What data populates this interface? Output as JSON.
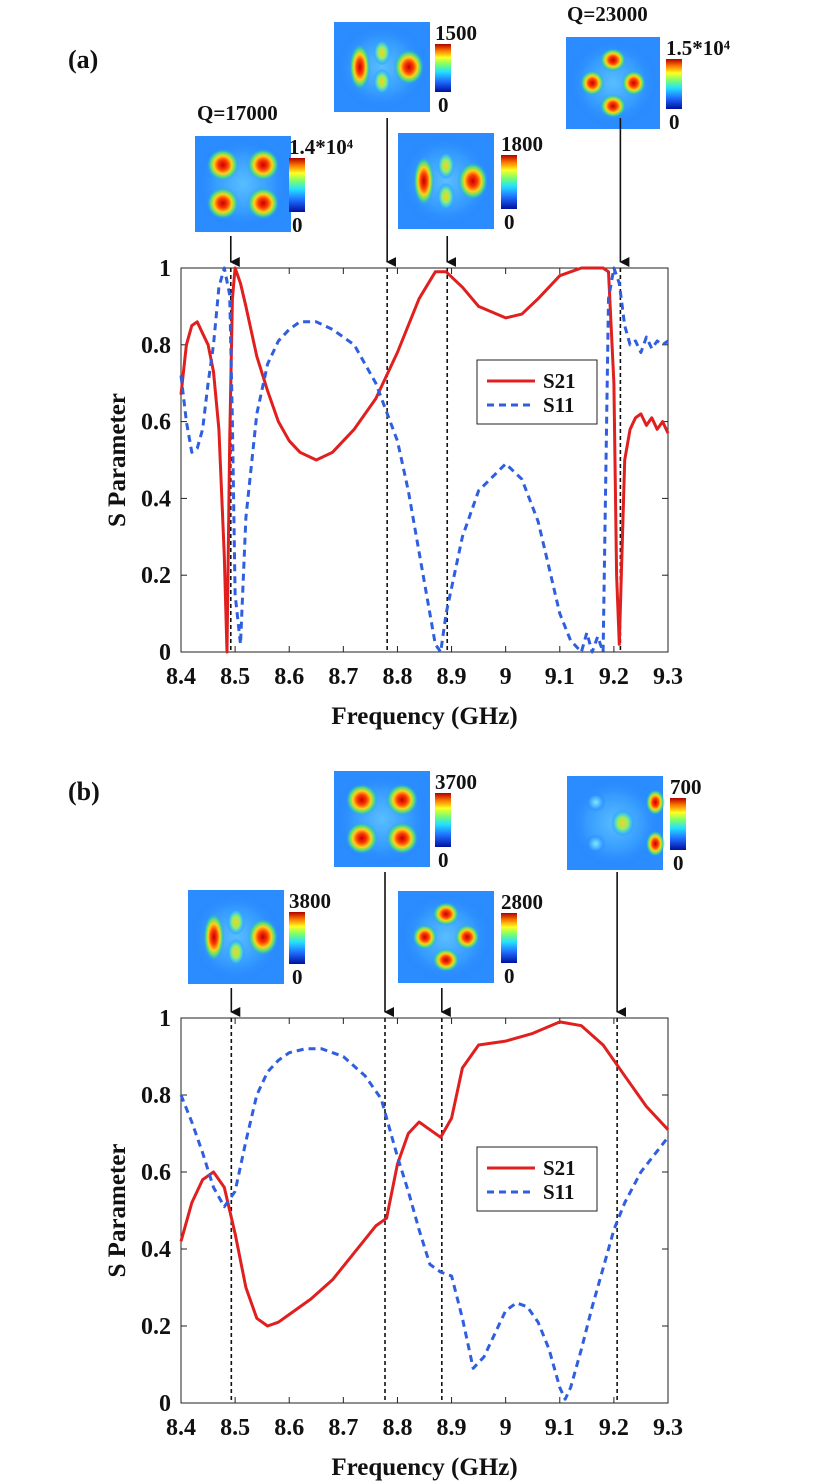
{
  "chart_data": [
    {
      "type": "line",
      "panel_label": "(a)",
      "xlabel": "Frequency (GHz)",
      "ylabel": "S Parameter",
      "xlim": [
        8.4,
        9.3
      ],
      "ylim": [
        0,
        1
      ],
      "xticks": [
        "8.4",
        "8.5",
        "8.6",
        "8.7",
        "8.8",
        "8.9",
        "9",
        "9.1",
        "9.2",
        "9.3"
      ],
      "yticks": [
        "0",
        "0.2",
        "0.4",
        "0.6",
        "0.8",
        "1"
      ],
      "legend": {
        "position": "center-right",
        "entries": [
          "S21",
          "S11"
        ]
      },
      "series": [
        {
          "name": "S21",
          "color": "#e01f1f",
          "style": "solid",
          "x": [
            8.4,
            8.41,
            8.42,
            8.43,
            8.44,
            8.45,
            8.46,
            8.47,
            8.48,
            8.485,
            8.49,
            8.495,
            8.5,
            8.51,
            8.52,
            8.54,
            8.56,
            8.58,
            8.6,
            8.62,
            8.65,
            8.68,
            8.72,
            8.76,
            8.8,
            8.84,
            8.87,
            8.89,
            8.92,
            8.95,
            9.0,
            9.03,
            9.06,
            9.08,
            9.1,
            9.12,
            9.14,
            9.16,
            9.18,
            9.19,
            9.2,
            9.205,
            9.21,
            9.22,
            9.23,
            9.24,
            9.25,
            9.26,
            9.27,
            9.28,
            9.29,
            9.3
          ],
          "y": [
            0.67,
            0.8,
            0.85,
            0.86,
            0.83,
            0.8,
            0.73,
            0.58,
            0.25,
            0.0,
            0.55,
            0.92,
            1.0,
            0.96,
            0.9,
            0.77,
            0.68,
            0.6,
            0.55,
            0.52,
            0.5,
            0.52,
            0.58,
            0.66,
            0.78,
            0.92,
            0.99,
            0.99,
            0.95,
            0.9,
            0.87,
            0.88,
            0.92,
            0.95,
            0.98,
            0.99,
            1.0,
            1.0,
            1.0,
            0.99,
            0.7,
            0.2,
            0.02,
            0.5,
            0.58,
            0.61,
            0.62,
            0.59,
            0.61,
            0.58,
            0.6,
            0.57
          ]
        },
        {
          "name": "S11",
          "color": "#2f5fe0",
          "style": "dashed",
          "x": [
            8.4,
            8.41,
            8.42,
            8.43,
            8.44,
            8.45,
            8.46,
            8.47,
            8.48,
            8.49,
            8.495,
            8.5,
            8.51,
            8.52,
            8.54,
            8.56,
            8.58,
            8.6,
            8.62,
            8.65,
            8.68,
            8.72,
            8.76,
            8.8,
            8.82,
            8.84,
            8.86,
            8.87,
            8.88,
            8.89,
            8.92,
            8.95,
            9.0,
            9.03,
            9.06,
            9.08,
            9.1,
            9.12,
            9.14,
            9.15,
            9.16,
            9.17,
            9.18,
            9.19,
            9.2,
            9.21,
            9.22,
            9.23,
            9.24,
            9.25,
            9.26,
            9.27,
            9.28,
            9.29,
            9.3
          ],
          "y": [
            0.72,
            0.6,
            0.52,
            0.53,
            0.58,
            0.7,
            0.8,
            0.95,
            1.0,
            0.93,
            0.6,
            0.15,
            0.02,
            0.35,
            0.62,
            0.75,
            0.81,
            0.84,
            0.86,
            0.86,
            0.84,
            0.8,
            0.7,
            0.55,
            0.42,
            0.26,
            0.1,
            0.02,
            0.0,
            0.1,
            0.3,
            0.42,
            0.49,
            0.45,
            0.34,
            0.22,
            0.1,
            0.03,
            0.0,
            0.05,
            0.0,
            0.04,
            0.0,
            0.92,
            1.0,
            0.96,
            0.85,
            0.8,
            0.81,
            0.78,
            0.82,
            0.79,
            0.81,
            0.8,
            0.81
          ]
        }
      ],
      "marker_lines_x": [
        8.492,
        8.781,
        8.892,
        9.212
      ],
      "insets": [
        {
          "pattern": "quad",
          "scale_max": "1.4*10⁴",
          "scale_min": "0",
          "q_label": "Q=17000",
          "arrow_x": 8.492,
          "arrow": "short"
        },
        {
          "pattern": "vtriple",
          "scale_max": "1500",
          "scale_min": "0",
          "q_label": "",
          "arrow_x": 8.781,
          "arrow": "long"
        },
        {
          "pattern": "vtriple",
          "scale_max": "1800",
          "scale_min": "0",
          "q_label": "",
          "arrow_x": 8.892,
          "arrow": "short"
        },
        {
          "pattern": "diamond",
          "scale_max": "1.5*10⁴",
          "scale_min": "0",
          "q_label": "Q=23000",
          "arrow_x": 9.212,
          "arrow": "long"
        }
      ]
    },
    {
      "type": "line",
      "panel_label": "(b)",
      "xlabel": "Frequency (GHz)",
      "ylabel": "S Parameter",
      "xlim": [
        8.4,
        9.3
      ],
      "ylim": [
        0,
        1
      ],
      "xticks": [
        "8.4",
        "8.5",
        "8.6",
        "8.7",
        "8.8",
        "8.9",
        "9",
        "9.1",
        "9.2",
        "9.3"
      ],
      "yticks": [
        "0",
        "0.2",
        "0.4",
        "0.6",
        "0.8",
        "1"
      ],
      "legend": {
        "position": "center-right",
        "entries": [
          "S21",
          "S11"
        ]
      },
      "series": [
        {
          "name": "S21",
          "color": "#e01f1f",
          "style": "solid",
          "x": [
            8.4,
            8.42,
            8.44,
            8.46,
            8.48,
            8.5,
            8.52,
            8.54,
            8.56,
            8.58,
            8.6,
            8.64,
            8.68,
            8.72,
            8.76,
            8.78,
            8.8,
            8.82,
            8.84,
            8.86,
            8.88,
            8.9,
            8.92,
            8.95,
            9.0,
            9.05,
            9.1,
            9.14,
            9.18,
            9.22,
            9.26,
            9.3
          ],
          "y": [
            0.42,
            0.52,
            0.58,
            0.6,
            0.56,
            0.44,
            0.3,
            0.22,
            0.2,
            0.21,
            0.23,
            0.27,
            0.32,
            0.39,
            0.46,
            0.48,
            0.62,
            0.7,
            0.73,
            0.71,
            0.69,
            0.74,
            0.87,
            0.93,
            0.94,
            0.96,
            0.99,
            0.98,
            0.93,
            0.85,
            0.77,
            0.71
          ]
        },
        {
          "name": "S11",
          "color": "#2f5fe0",
          "style": "dashed",
          "x": [
            8.4,
            8.42,
            8.44,
            8.46,
            8.48,
            8.5,
            8.52,
            8.54,
            8.56,
            8.58,
            8.6,
            8.63,
            8.66,
            8.7,
            8.74,
            8.77,
            8.8,
            8.82,
            8.84,
            8.86,
            8.88,
            8.9,
            8.92,
            8.94,
            8.96,
            9.0,
            9.02,
            9.04,
            9.06,
            9.08,
            9.1,
            9.11,
            9.12,
            9.14,
            9.16,
            9.18,
            9.2,
            9.22,
            9.25,
            9.3
          ],
          "y": [
            0.8,
            0.73,
            0.65,
            0.56,
            0.51,
            0.55,
            0.68,
            0.8,
            0.86,
            0.89,
            0.91,
            0.92,
            0.92,
            0.9,
            0.85,
            0.79,
            0.64,
            0.55,
            0.45,
            0.36,
            0.34,
            0.33,
            0.22,
            0.09,
            0.12,
            0.24,
            0.26,
            0.25,
            0.21,
            0.14,
            0.04,
            0.01,
            0.04,
            0.14,
            0.25,
            0.35,
            0.45,
            0.52,
            0.6,
            0.69
          ]
        }
      ],
      "marker_lines_x": [
        8.493,
        8.777,
        8.882,
        9.206
      ],
      "insets": [
        {
          "pattern": "vtriple",
          "scale_max": "3800",
          "scale_min": "0",
          "q_label": "",
          "arrow_x": 8.493,
          "arrow": "short"
        },
        {
          "pattern": "quad",
          "scale_max": "3700",
          "scale_min": "0",
          "q_label": "",
          "arrow_x": 8.777,
          "arrow": "long"
        },
        {
          "pattern": "diamond",
          "scale_max": "2800",
          "scale_min": "0",
          "q_label": "",
          "arrow_x": 8.882,
          "arrow": "short"
        },
        {
          "pattern": "cluster",
          "scale_max": "700",
          "scale_min": "0",
          "q_label": "",
          "arrow_x": 9.206,
          "arrow": "long"
        }
      ]
    }
  ]
}
